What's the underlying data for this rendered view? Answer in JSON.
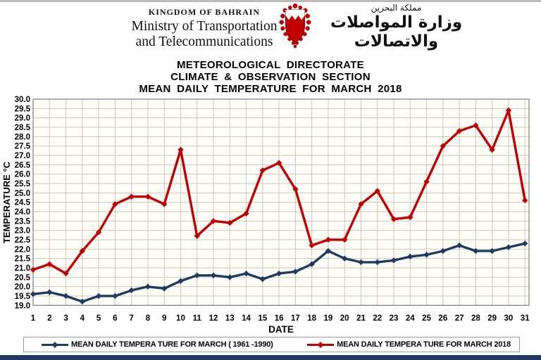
{
  "header": {
    "kingdom": "KINGDOM OF BAHRAIN",
    "ministry_line1": "Ministry of Transportation",
    "ministry_line2": "and Telecommunications",
    "arabic_kingdom": "مملكة البحرين",
    "arabic_ministry": "وزارة المواصلات والاتصالات",
    "emblem_icon": "bahrain-coat-of-arms"
  },
  "title": {
    "line1": "METEOROLOGICAL DIRECTORATE",
    "line2": "CLIMATE & OBSERVATION SECTION",
    "line3": "MEAN DAILY TEMPERATURE FOR MARCH 2018"
  },
  "chart_data": {
    "type": "line",
    "x": [
      1,
      2,
      3,
      4,
      5,
      6,
      7,
      8,
      9,
      10,
      11,
      12,
      13,
      14,
      15,
      16,
      17,
      18,
      19,
      20,
      21,
      22,
      23,
      24,
      25,
      26,
      27,
      28,
      29,
      30,
      31
    ],
    "xlabel": "DATE",
    "ylabel": "TEMPERATURE °C",
    "ylim": [
      19.0,
      30.0
    ],
    "ytick_step": 0.5,
    "grid": true,
    "legend_position": "bottom",
    "series": [
      {
        "name": "MEAN DAILY TEMPERA TURE FOR MARCH ( 1961 -1990)",
        "color": "#1F3B63",
        "marker": "diamond",
        "values": [
          19.6,
          19.7,
          19.5,
          19.2,
          19.5,
          19.5,
          19.8,
          20.0,
          19.9,
          20.3,
          20.6,
          20.6,
          20.5,
          20.7,
          20.4,
          20.7,
          20.8,
          21.2,
          21.9,
          21.5,
          21.3,
          21.3,
          21.4,
          21.6,
          21.7,
          21.9,
          22.2,
          21.9,
          21.9,
          22.1,
          22.3
        ]
      },
      {
        "name": "MEAN DAILY TEMPERA TURE FOR MARCH 2018",
        "color": "#C00000",
        "marker": "diamond",
        "values": [
          20.9,
          21.2,
          20.7,
          21.9,
          22.9,
          24.4,
          24.8,
          24.8,
          24.4,
          27.3,
          22.7,
          23.5,
          23.4,
          23.9,
          26.2,
          26.6,
          25.2,
          22.2,
          22.5,
          22.5,
          24.4,
          25.1,
          23.6,
          23.7,
          25.6,
          27.5,
          28.3,
          28.6,
          27.3,
          29.4,
          24.6
        ]
      }
    ],
    "plot_bg": "#FFFEF8",
    "grid_color": "#CDC7B4",
    "border_color": "#7f7f7f"
  }
}
